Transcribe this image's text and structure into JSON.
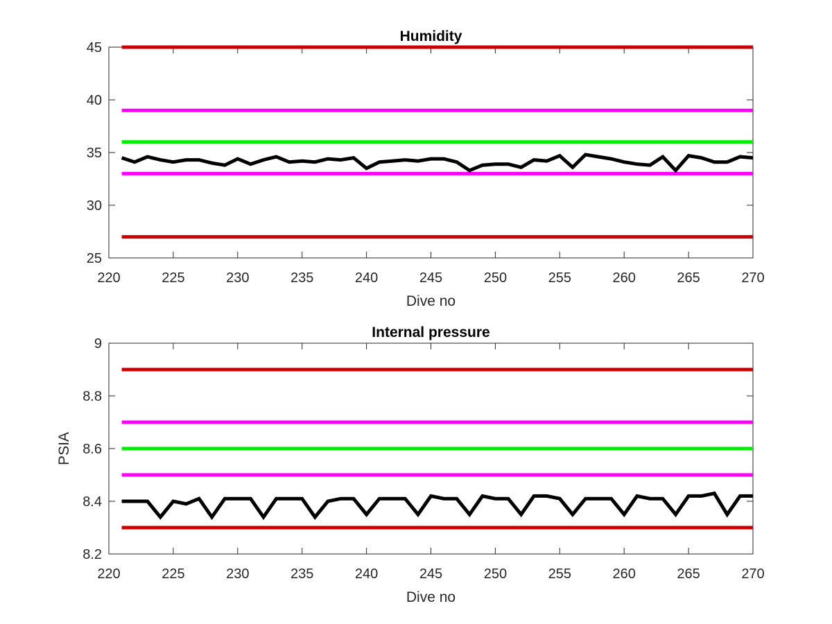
{
  "chart_data": [
    {
      "type": "line",
      "title": "Humidity",
      "xlabel": "Dive no",
      "ylabel": "",
      "xlim": [
        220,
        270
      ],
      "ylim": [
        25,
        45
      ],
      "xticks": [
        220,
        225,
        230,
        235,
        240,
        245,
        250,
        255,
        260,
        265,
        270
      ],
      "yticks": [
        25,
        30,
        35,
        40,
        45
      ],
      "grid": false,
      "thresholds": [
        {
          "value": 45,
          "color": "#cc0000"
        },
        {
          "value": 39,
          "color": "#ff00ff"
        },
        {
          "value": 36,
          "color": "#00ee00"
        },
        {
          "value": 33,
          "color": "#ff00ff"
        },
        {
          "value": 27,
          "color": "#cc0000"
        }
      ],
      "series": [
        {
          "color": "#000000",
          "x": [
            221,
            222,
            223,
            224,
            225,
            226,
            227,
            228,
            229,
            230,
            231,
            232,
            233,
            234,
            235,
            236,
            237,
            238,
            239,
            240,
            241,
            242,
            243,
            244,
            245,
            246,
            247,
            248,
            249,
            250,
            251,
            252,
            253,
            254,
            255,
            256,
            257,
            258,
            259,
            260,
            261,
            262,
            263,
            264,
            265,
            266,
            267,
            268,
            269,
            270
          ],
          "values": [
            34.5,
            34.1,
            34.6,
            34.3,
            34.1,
            34.3,
            34.3,
            34.0,
            33.8,
            34.4,
            33.9,
            34.3,
            34.6,
            34.1,
            34.2,
            34.1,
            34.4,
            34.3,
            34.5,
            33.5,
            34.1,
            34.2,
            34.3,
            34.2,
            34.4,
            34.4,
            34.1,
            33.3,
            33.8,
            33.9,
            33.9,
            33.6,
            34.3,
            34.2,
            34.7,
            33.6,
            34.8,
            34.6,
            34.4,
            34.1,
            33.9,
            33.8,
            34.6,
            33.3,
            34.7,
            34.5,
            34.1,
            34.1,
            34.6,
            34.5
          ]
        }
      ]
    },
    {
      "type": "line",
      "title": "Internal pressure",
      "xlabel": "Dive no",
      "ylabel": "PSIA",
      "xlim": [
        220,
        270
      ],
      "ylim": [
        8.2,
        9
      ],
      "xticks": [
        220,
        225,
        230,
        235,
        240,
        245,
        250,
        255,
        260,
        265,
        270
      ],
      "yticks": [
        8.2,
        8.4,
        8.6,
        8.8,
        9
      ],
      "grid": false,
      "thresholds": [
        {
          "value": 8.9,
          "color": "#cc0000"
        },
        {
          "value": 8.7,
          "color": "#ff00ff"
        },
        {
          "value": 8.6,
          "color": "#00ee00"
        },
        {
          "value": 8.5,
          "color": "#ff00ff"
        },
        {
          "value": 8.3,
          "color": "#cc0000"
        }
      ],
      "series": [
        {
          "color": "#000000",
          "x": [
            221,
            222,
            223,
            224,
            225,
            226,
            227,
            228,
            229,
            230,
            231,
            232,
            233,
            234,
            235,
            236,
            237,
            238,
            239,
            240,
            241,
            242,
            243,
            244,
            245,
            246,
            247,
            248,
            249,
            250,
            251,
            252,
            253,
            254,
            255,
            256,
            257,
            258,
            259,
            260,
            261,
            262,
            263,
            264,
            265,
            266,
            267,
            268,
            269,
            270
          ],
          "values": [
            8.4,
            8.4,
            8.4,
            8.34,
            8.4,
            8.39,
            8.41,
            8.34,
            8.41,
            8.41,
            8.41,
            8.34,
            8.41,
            8.41,
            8.41,
            8.34,
            8.4,
            8.41,
            8.41,
            8.35,
            8.41,
            8.41,
            8.41,
            8.35,
            8.42,
            8.41,
            8.41,
            8.35,
            8.42,
            8.41,
            8.41,
            8.35,
            8.42,
            8.42,
            8.41,
            8.35,
            8.41,
            8.41,
            8.41,
            8.35,
            8.42,
            8.41,
            8.41,
            8.35,
            8.42,
            8.42,
            8.43,
            8.35,
            8.42,
            8.42
          ]
        }
      ]
    }
  ]
}
